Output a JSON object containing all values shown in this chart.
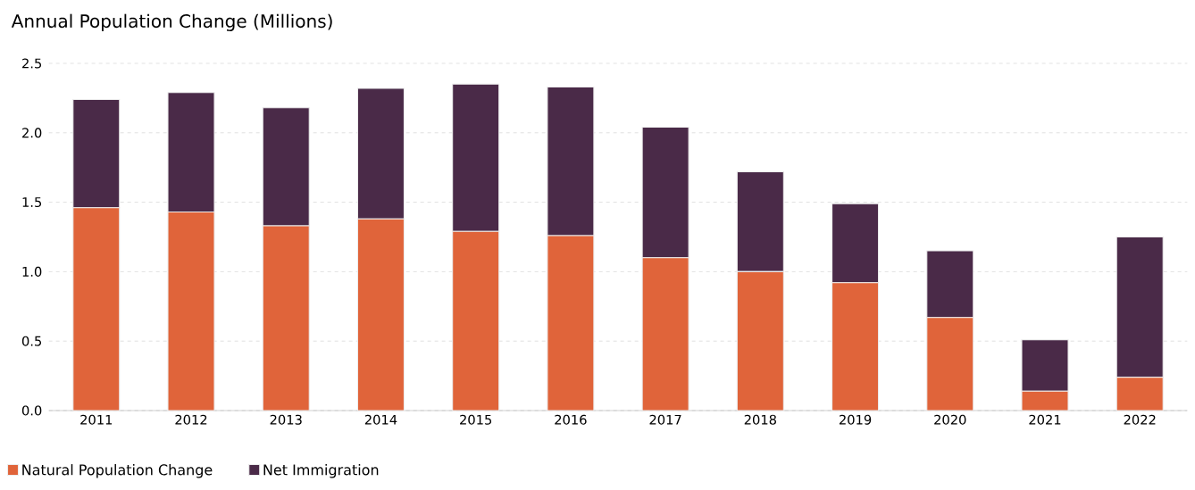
{
  "chart_data": {
    "type": "bar",
    "title": "Annual Population Change (Millions)",
    "categories": [
      "2011",
      "2012",
      "2013",
      "2014",
      "2015",
      "2016",
      "2017",
      "2018",
      "2019",
      "2020",
      "2021",
      "2022"
    ],
    "stacked": true,
    "series": [
      {
        "name": "Natural Population Change",
        "color": "#e0643a",
        "values": [
          1.46,
          1.43,
          1.33,
          1.38,
          1.29,
          1.26,
          1.1,
          1.0,
          0.92,
          0.67,
          0.14,
          0.24
        ]
      },
      {
        "name": "Net Immigration",
        "color": "#4a2a48",
        "values": [
          0.78,
          0.86,
          0.85,
          0.94,
          1.06,
          1.07,
          0.94,
          0.72,
          0.57,
          0.48,
          0.37,
          1.01
        ]
      }
    ],
    "ylim": [
      0,
      2.5
    ],
    "yticks": [
      {
        "value": 0,
        "label": "0.0"
      },
      0.5,
      {
        "value": 1,
        "label": "1.0"
      },
      1.5,
      {
        "value": 2,
        "label": "2.0"
      },
      2.5
    ],
    "grid": "y",
    "legend": "bottom left"
  }
}
